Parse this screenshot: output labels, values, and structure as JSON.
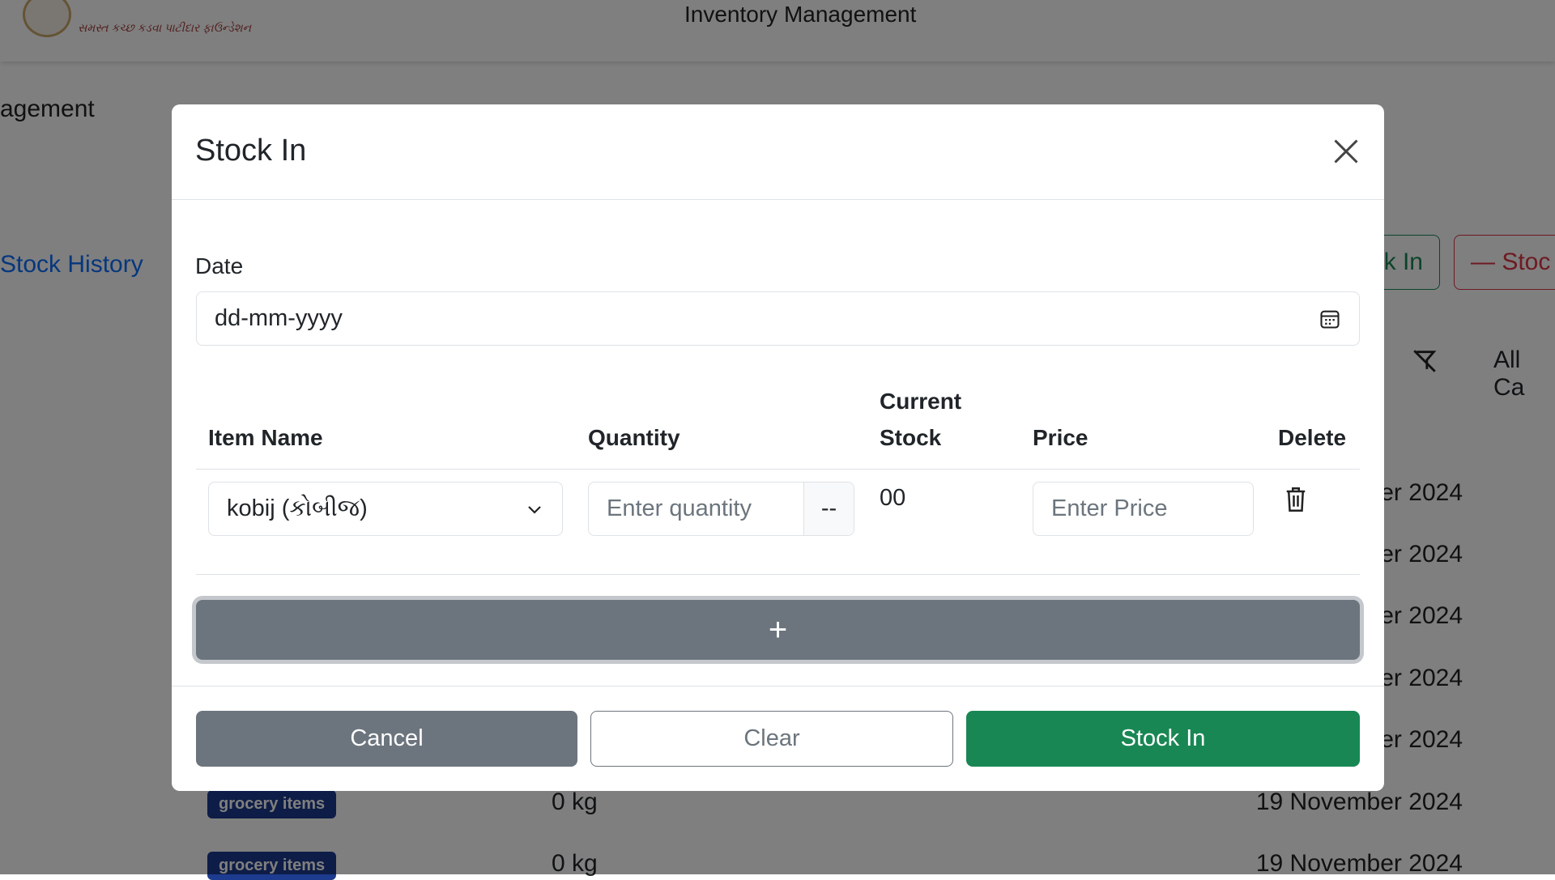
{
  "header": {
    "logo_text": "સમસ્ત કચ્છ કડવા પાટીદાર ફાઉન્ડેશન",
    "title": "Inventory Management"
  },
  "page": {
    "heading": "agement",
    "stock_history_link": "Stock History",
    "stock_in_button": "k In",
    "stock_out_button": "— Stoc",
    "filter_icon": "filter-off-icon",
    "category_select": "All Ca",
    "rows": [
      {
        "date": "er 2024"
      },
      {
        "date": "er 2024"
      },
      {
        "date": "er 2024"
      },
      {
        "date": "er 2024"
      },
      {
        "date": "er 2024"
      },
      {
        "category": "grocery items",
        "stock": "0 kg",
        "date": "19 November 2024"
      },
      {
        "category": "grocery items",
        "stock": "0 kg",
        "date": "19 November 2024"
      }
    ]
  },
  "modal": {
    "title": "Stock In",
    "close_icon": "close-icon",
    "date_label": "Date",
    "date_placeholder": "dd-mm-yyyy",
    "calendar_icon": "calendar-icon",
    "columns": {
      "item_name": "Item Name",
      "quantity": "Quantity",
      "current_stock_1": "Current",
      "current_stock_2": "Stock",
      "price": "Price",
      "delete": "Delete"
    },
    "row": {
      "item": "kobij (કોબીજ)",
      "quantity_placeholder": "Enter quantity",
      "unit": "--",
      "current_stock": "00",
      "price_placeholder": "Enter Price"
    },
    "add_row_label": "+",
    "buttons": {
      "cancel": "Cancel",
      "clear": "Clear",
      "submit": "Stock In"
    },
    "colors": {
      "primary_green": "#198754",
      "secondary_gray": "#6c757d"
    }
  }
}
